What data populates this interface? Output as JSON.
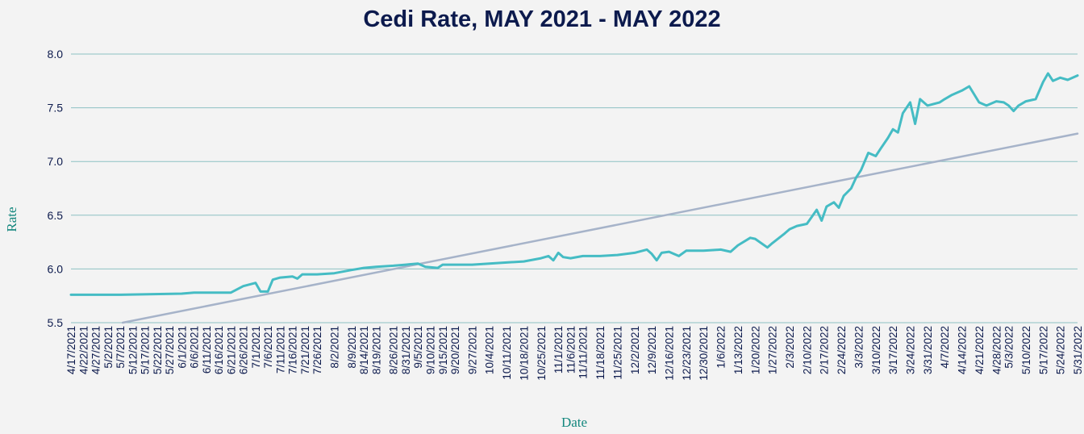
{
  "chart_data": {
    "type": "line",
    "title": "Cedi Rate, MAY 2021 - MAY 2022",
    "xlabel": "Date",
    "ylabel": "Rate",
    "ylim": [
      5.5,
      8.0
    ],
    "yticks": [
      "5.5",
      "6.0",
      "6.5",
      "7.0",
      "7.5",
      "8.0"
    ],
    "grid": true,
    "x_tick_labels": [
      "4/17/2021",
      "4/22/2021",
      "4/27/2021",
      "5/2/2021",
      "5/7/2021",
      "5/12/2021",
      "5/17/2021",
      "5/22/2021",
      "5/27/2021",
      "6/1/2021",
      "6/6/2021",
      "6/11/2021",
      "6/16/2021",
      "6/21/2021",
      "6/26/2021",
      "7/1/2021",
      "7/6/2021",
      "7/11/2021",
      "7/16/2021",
      "7/21/2021",
      "7/26/2021",
      "8/2/2021",
      "8/9/2021",
      "8/14/2021",
      "8/19/2021",
      "8/26/2021",
      "8/31/2021",
      "9/5/2021",
      "9/10/2021",
      "9/15/2021",
      "9/20/2021",
      "9/27/2021",
      "10/4/2021",
      "10/11/2021",
      "10/18/2021",
      "10/25/2021",
      "11/1/2021",
      "11/6/2021",
      "11/11/2021",
      "11/18/2021",
      "11/25/2021",
      "12/2/2021",
      "12/9/2021",
      "12/16/2021",
      "12/23/2021",
      "12/30/2021",
      "1/6/2022",
      "1/13/2022",
      "1/20/2022",
      "1/27/2022",
      "2/3/2022",
      "2/10/2022",
      "2/17/2022",
      "2/24/2022",
      "3/3/2022",
      "3/10/2022",
      "3/17/2022",
      "3/24/2022",
      "3/31/2022",
      "4/7/2022",
      "4/14/2022",
      "4/21/2022",
      "4/28/2022",
      "5/3/2022",
      "5/10/2022",
      "5/17/2022",
      "5/24/2022",
      "5/31/2022"
    ],
    "series": [
      {
        "color": "#45bcc4",
        "points": [
          [
            "4/17/2021",
            5.76
          ],
          [
            "5/7/2021",
            5.76
          ],
          [
            "6/1/2021",
            5.77
          ],
          [
            "6/6/2021",
            5.78
          ],
          [
            "6/11/2021",
            5.78
          ],
          [
            "6/21/2021",
            5.78
          ],
          [
            "6/26/2021",
            5.84
          ],
          [
            "7/1/2021",
            5.87
          ],
          [
            "7/3/2021",
            5.79
          ],
          [
            "7/6/2021",
            5.79
          ],
          [
            "7/8/2021",
            5.9
          ],
          [
            "7/11/2021",
            5.92
          ],
          [
            "7/16/2021",
            5.93
          ],
          [
            "7/18/2021",
            5.91
          ],
          [
            "7/20/2021",
            5.95
          ],
          [
            "7/26/2021",
            5.95
          ],
          [
            "8/2/2021",
            5.96
          ],
          [
            "8/9/2021",
            5.99
          ],
          [
            "8/14/2021",
            6.01
          ],
          [
            "8/19/2021",
            6.02
          ],
          [
            "8/26/2021",
            6.03
          ],
          [
            "8/31/2021",
            6.04
          ],
          [
            "9/5/2021",
            6.05
          ],
          [
            "9/8/2021",
            6.02
          ],
          [
            "9/13/2021",
            6.01
          ],
          [
            "9/15/2021",
            6.04
          ],
          [
            "9/20/2021",
            6.04
          ],
          [
            "9/27/2021",
            6.04
          ],
          [
            "10/4/2021",
            6.05
          ],
          [
            "10/11/2021",
            6.06
          ],
          [
            "10/18/2021",
            6.07
          ],
          [
            "10/25/2021",
            6.1
          ],
          [
            "10/28/2021",
            6.12
          ],
          [
            "10/30/2021",
            6.08
          ],
          [
            "11/1/2021",
            6.15
          ],
          [
            "11/3/2021",
            6.11
          ],
          [
            "11/6/2021",
            6.1
          ],
          [
            "11/11/2021",
            6.12
          ],
          [
            "11/18/2021",
            6.12
          ],
          [
            "11/25/2021",
            6.13
          ],
          [
            "12/2/2021",
            6.15
          ],
          [
            "12/7/2021",
            6.18
          ],
          [
            "12/9/2021",
            6.14
          ],
          [
            "12/11/2021",
            6.08
          ],
          [
            "12/13/2021",
            6.15
          ],
          [
            "12/16/2021",
            6.16
          ],
          [
            "12/20/2021",
            6.12
          ],
          [
            "12/23/2021",
            6.17
          ],
          [
            "12/30/2021",
            6.17
          ],
          [
            "1/6/2022",
            6.18
          ],
          [
            "1/10/2022",
            6.16
          ],
          [
            "1/13/2022",
            6.22
          ],
          [
            "1/18/2022",
            6.29
          ],
          [
            "1/20/2022",
            6.28
          ],
          [
            "1/25/2022",
            6.2
          ],
          [
            "1/27/2022",
            6.24
          ],
          [
            "2/1/2022",
            6.33
          ],
          [
            "2/3/2022",
            6.37
          ],
          [
            "2/6/2022",
            6.4
          ],
          [
            "2/10/2022",
            6.42
          ],
          [
            "2/14/2022",
            6.55
          ],
          [
            "2/16/2022",
            6.45
          ],
          [
            "2/18/2022",
            6.58
          ],
          [
            "2/21/2022",
            6.62
          ],
          [
            "2/23/2022",
            6.57
          ],
          [
            "2/25/2022",
            6.68
          ],
          [
            "2/28/2022",
            6.75
          ],
          [
            "3/2/2022",
            6.85
          ],
          [
            "3/4/2022",
            6.92
          ],
          [
            "3/7/2022",
            7.08
          ],
          [
            "3/10/2022",
            7.05
          ],
          [
            "3/12/2022",
            7.12
          ],
          [
            "3/15/2022",
            7.22
          ],
          [
            "3/17/2022",
            7.3
          ],
          [
            "3/19/2022",
            7.27
          ],
          [
            "3/21/2022",
            7.45
          ],
          [
            "3/24/2022",
            7.55
          ],
          [
            "3/26/2022",
            7.35
          ],
          [
            "3/28/2022",
            7.58
          ],
          [
            "3/31/2022",
            7.52
          ],
          [
            "4/5/2022",
            7.55
          ],
          [
            "4/7/2022",
            7.58
          ],
          [
            "4/10/2022",
            7.62
          ],
          [
            "4/14/2022",
            7.66
          ],
          [
            "4/17/2022",
            7.7
          ],
          [
            "4/21/2022",
            7.55
          ],
          [
            "4/24/2022",
            7.52
          ],
          [
            "4/28/2022",
            7.56
          ],
          [
            "5/1/2022",
            7.55
          ],
          [
            "5/3/2022",
            7.52
          ],
          [
            "5/5/2022",
            7.47
          ],
          [
            "5/7/2022",
            7.52
          ],
          [
            "5/10/2022",
            7.56
          ],
          [
            "5/14/2022",
            7.58
          ],
          [
            "5/17/2022",
            7.74
          ],
          [
            "5/19/2022",
            7.82
          ],
          [
            "5/21/2022",
            7.75
          ],
          [
            "5/24/2022",
            7.78
          ],
          [
            "5/27/2022",
            7.76
          ],
          [
            "5/31/2022",
            7.8
          ]
        ]
      },
      {
        "color": "#a6b3c9",
        "points": [
          [
            "5/8/2021",
            5.5
          ],
          [
            "5/31/2022",
            7.26
          ]
        ]
      }
    ]
  }
}
